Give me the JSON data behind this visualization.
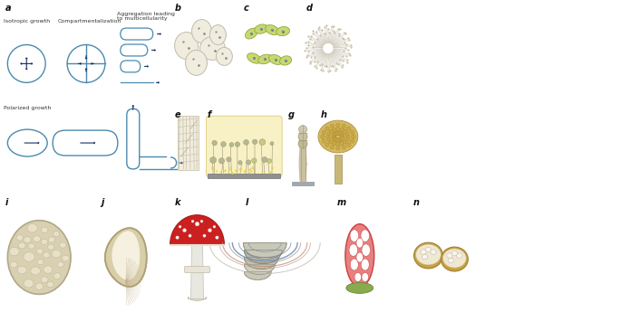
{
  "bg_color": "#ffffff",
  "arrow_color": "#1a3060",
  "outline_color": "#4a8ab0",
  "panel_label_color": "#111111",
  "isotropic_label": "Isotropic growth",
  "compartment_label": "Compartmentalization",
  "aggregation_label": "Aggregation leading\nto multicellularity",
  "polarized_label": "Polarized growth",
  "fig_w": 6.85,
  "fig_h": 3.45,
  "dpi": 100
}
